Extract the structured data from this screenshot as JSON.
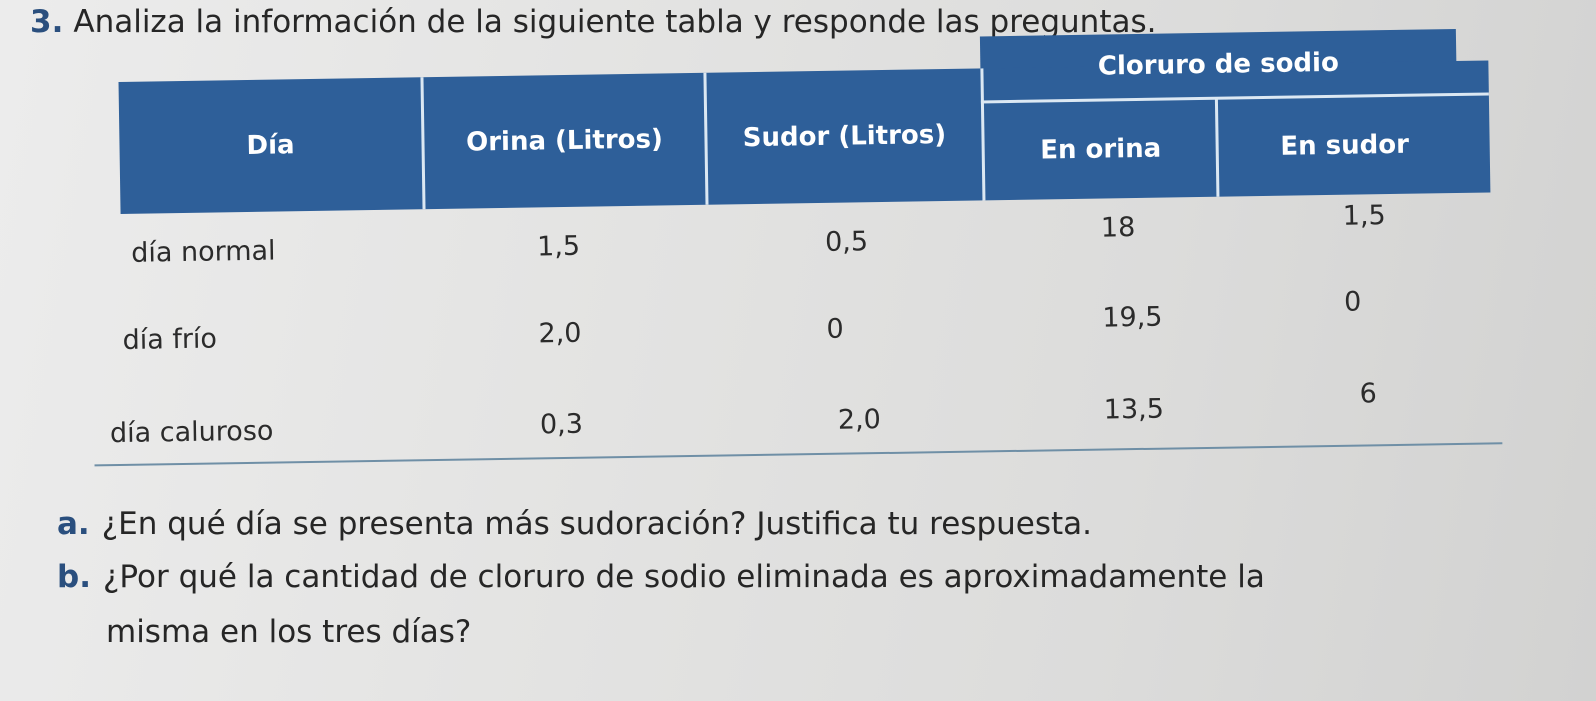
{
  "exercise": {
    "number": "3.",
    "instruction": "Analiza la información de la siguiente tabla y responde las preguntas."
  },
  "table": {
    "header_color": "#2e5f99",
    "headers": {
      "dia": "Día",
      "orina": "Orina (Litros)",
      "sudor": "Sudor (Litros)",
      "cloruro_group": "Cloruro de sodio",
      "en_orina": "En orina",
      "en_sudor": "En sudor"
    },
    "rows": [
      {
        "dia": "día normal",
        "orina": "1,5",
        "sudor": "0,5",
        "cloruro_orina": "18",
        "cloruro_sudor": "1,5"
      },
      {
        "dia": "día frío",
        "orina": "2,0",
        "sudor": "0",
        "cloruro_orina": "19,5",
        "cloruro_sudor": "0"
      },
      {
        "dia": "día caluroso",
        "orina": "0,3",
        "sudor": "2,0",
        "cloruro_orina": "13,5",
        "cloruro_sudor": "6"
      }
    ]
  },
  "questions": [
    {
      "letter": "a.",
      "text": "¿En qué día se presenta más sudoración? Justifica tu respuesta."
    },
    {
      "letter": "b.",
      "text": "¿Por qué la cantidad de cloruro de sodio eliminada es aproximadamente la"
    },
    {
      "letter": "",
      "text": "misma en los tres días?"
    }
  ]
}
